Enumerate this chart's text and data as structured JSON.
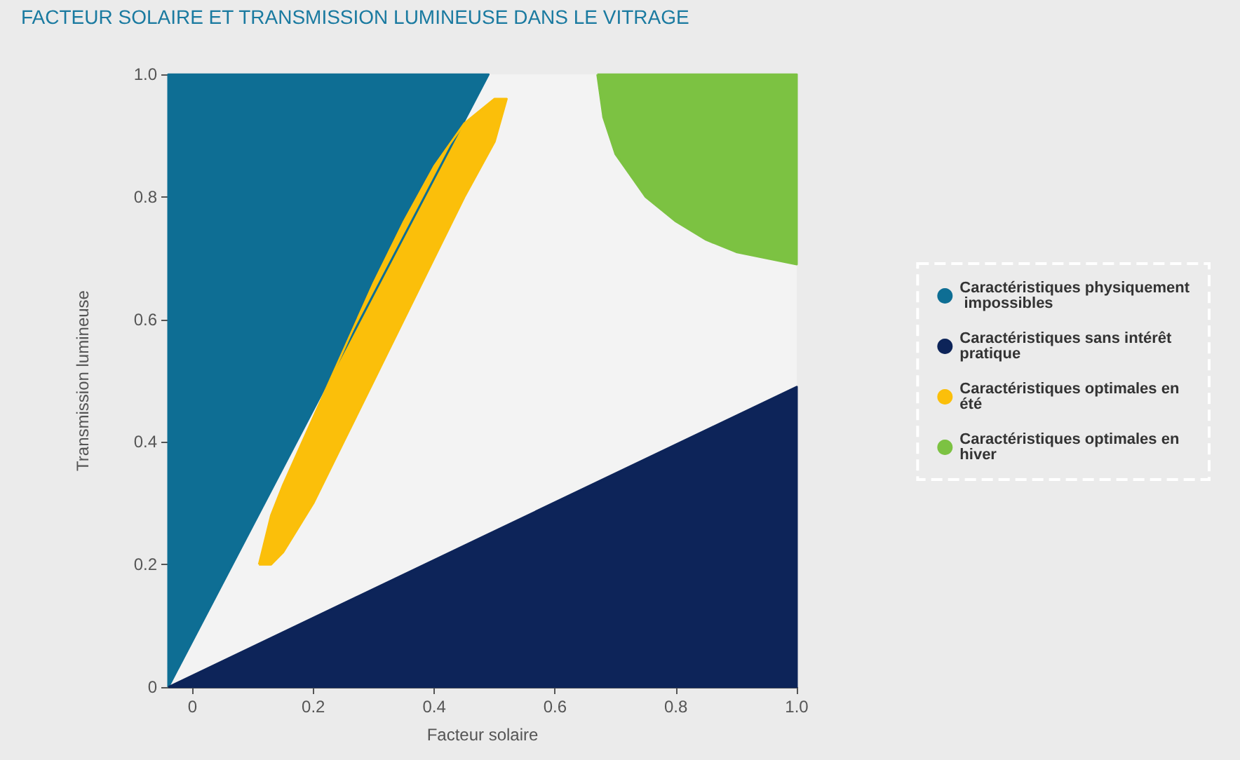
{
  "chart_data": {
    "type": "area",
    "title": "FACTEUR SOLAIRE ET TRANSMISSION LUMINEUSE DANS LE VITRAGE",
    "xlabel": "Facteur solaire",
    "ylabel": "Transmission lumineuse",
    "xlim": [
      -0.04,
      1
    ],
    "ylim": [
      0,
      1
    ],
    "xticks": [
      0,
      0.2,
      0.4,
      0.6,
      0.8,
      {
        "value": 1,
        "label": "1.0"
      }
    ],
    "yticks": [
      0,
      0.2,
      0.4,
      0.6,
      0.8,
      {
        "value": 1,
        "label": "1.0"
      }
    ],
    "grid": false,
    "legend": "right",
    "series": [
      {
        "name": "Caractéristiques physiquement impossibles",
        "color": "#0e6e94",
        "x": [
          -0.04,
          -0.04,
          0.49
        ],
        "values": [
          0,
          1,
          1
        ]
      },
      {
        "name": "Caractéristiques sans intérêt pratique",
        "color": "#0d2459",
        "x": [
          -0.04,
          1,
          1
        ],
        "values": [
          0,
          0.49,
          0
        ]
      },
      {
        "name": "Caractéristiques optimales en été",
        "color": "#fbbf0a",
        "x": [
          0.11,
          0.13,
          0.15,
          0.2,
          0.25,
          0.3,
          0.35,
          0.4,
          0.45,
          0.5,
          0.52,
          0.5,
          0.45,
          0.4,
          0.35,
          0.3,
          0.25,
          0.2,
          0.15,
          0.13
        ],
        "values": [
          0.2,
          0.28,
          0.33,
          0.44,
          0.55,
          0.66,
          0.76,
          0.85,
          0.92,
          0.96,
          0.96,
          0.89,
          0.8,
          0.7,
          0.6,
          0.5,
          0.4,
          0.3,
          0.22,
          0.2
        ]
      },
      {
        "name": "Caractéristiques optimales en hiver",
        "color": "#7cc242",
        "x": [
          0.67,
          1,
          1,
          0.95,
          0.9,
          0.85,
          0.8,
          0.75,
          0.7,
          0.68
        ],
        "values": [
          1,
          1,
          0.69,
          0.7,
          0.71,
          0.73,
          0.76,
          0.8,
          0.87,
          0.93
        ]
      }
    ]
  }
}
